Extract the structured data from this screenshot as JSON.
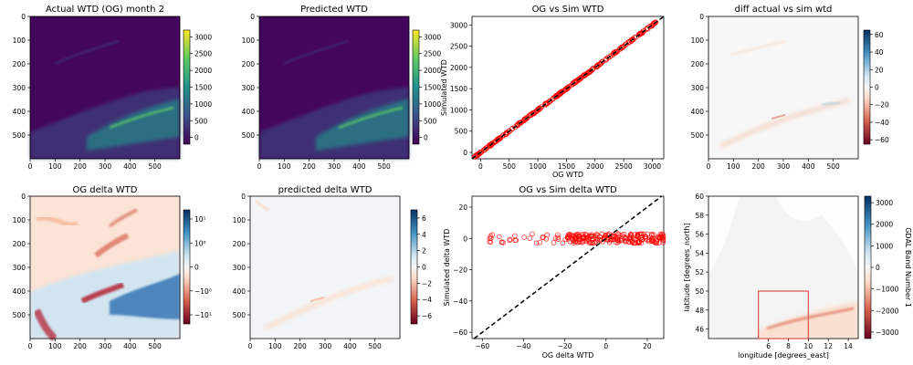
{
  "chart_data": [
    {
      "type": "heatmap",
      "title": "Actual WTD (OG) month 2",
      "x_ticks": [
        "0",
        "100",
        "200",
        "300",
        "400",
        "500"
      ],
      "y_ticks": [
        "0",
        "100",
        "200",
        "300",
        "400",
        "500"
      ],
      "xlim": [
        0,
        600
      ],
      "ylim": [
        0,
        600
      ],
      "colormap": "viridis",
      "colorbar_ticks": [
        "3000",
        "2500",
        "2000",
        "1500",
        "1000",
        "500",
        "0"
      ],
      "colorbar_range": [
        -200,
        3200
      ]
    },
    {
      "type": "heatmap",
      "title": "Predicted WTD",
      "x_ticks": [
        "0",
        "100",
        "200",
        "300",
        "400",
        "500"
      ],
      "y_ticks": [
        "0",
        "100",
        "200",
        "300",
        "400",
        "500"
      ],
      "xlim": [
        0,
        600
      ],
      "ylim": [
        0,
        600
      ],
      "colormap": "viridis",
      "colorbar_ticks": [
        "3000",
        "2500",
        "2000",
        "1500",
        "1000",
        "500",
        "0"
      ],
      "colorbar_range": [
        -200,
        3200
      ]
    },
    {
      "type": "scatter",
      "title": "OG vs Sim WTD",
      "xlabel": "OG WTD",
      "ylabel": "Simulated WTD",
      "xlim": [
        -150,
        3200
      ],
      "ylim": [
        -150,
        3200
      ],
      "x_ticks": [
        "0",
        "500",
        "1000",
        "1500",
        "2000",
        "2500",
        "3000"
      ],
      "y_ticks": [
        "0",
        "500",
        "1000",
        "1500",
        "2000",
        "2500",
        "3000"
      ],
      "x_tick_values": [
        0,
        500,
        1000,
        1500,
        2000,
        2500,
        3000
      ],
      "y_tick_values": [
        0,
        500,
        1000,
        1500,
        2000,
        2500,
        3000
      ],
      "point_color": "#ff0000",
      "reference_line": "y = x",
      "points": {
        "x_min": -100,
        "x_max": 3150,
        "spread": 15
      }
    },
    {
      "type": "heatmap",
      "title": "diff actual vs sim wtd",
      "x_ticks": [
        "0",
        "100",
        "200",
        "300",
        "400",
        "500"
      ],
      "y_ticks": [
        "0",
        "100",
        "200",
        "300",
        "400",
        "500"
      ],
      "xlim": [
        0,
        600
      ],
      "ylim": [
        0,
        600
      ],
      "colormap": "RdBu",
      "colorbar_ticks": [
        "60",
        "40",
        "20",
        "0",
        "−20",
        "−40",
        "−60"
      ],
      "colorbar_range": [
        -65,
        65
      ]
    },
    {
      "type": "heatmap",
      "title": "OG delta WTD",
      "x_ticks": [
        "0",
        "100",
        "200",
        "300",
        "400",
        "500"
      ],
      "y_ticks": [
        "0",
        "100",
        "200",
        "300",
        "400",
        "500"
      ],
      "xlim": [
        0,
        600
      ],
      "ylim": [
        0,
        600
      ],
      "colormap": "RdBu",
      "colorbar_ticks": [
        "10¹",
        "10⁰",
        "0",
        "−10⁰",
        "−10¹"
      ],
      "colorbar_scale": "symlog"
    },
    {
      "type": "heatmap",
      "title": "predicted delta WTD",
      "x_ticks": [
        "0",
        "100",
        "200",
        "300",
        "400",
        "500"
      ],
      "y_ticks": [
        "0",
        "100",
        "200",
        "300",
        "400",
        "500"
      ],
      "xlim": [
        0,
        600
      ],
      "ylim": [
        0,
        600
      ],
      "colormap": "RdBu",
      "colorbar_ticks": [
        "6",
        "4",
        "2",
        "0",
        "−2",
        "−4",
        "−6"
      ],
      "colorbar_range": [
        -7,
        7
      ]
    },
    {
      "type": "scatter",
      "title": "OG vs Sim delta WTD",
      "xlabel": "OG delta WTD",
      "ylabel": "Simulated delta WTD",
      "xlim": [
        -65,
        28
      ],
      "ylim": [
        -64,
        27
      ],
      "x_ticks": [
        "−60",
        "−40",
        "−20",
        "0",
        "20"
      ],
      "y_ticks": [
        "20",
        "0",
        "−20",
        "−40",
        "−60"
      ],
      "x_tick_values": [
        -60,
        -40,
        -20,
        0,
        20
      ],
      "y_tick_values": [
        20,
        0,
        -20,
        -40,
        -60
      ],
      "point_color": "#ff0000",
      "reference_line": "y = x",
      "points": {
        "x_min": -60,
        "x_max": 28,
        "y_center": 0,
        "y_spread": 3
      }
    },
    {
      "type": "heatmap",
      "xlabel": "longitude [degrees_east]",
      "ylabel": "latitude [degrees_north]",
      "xlim": [
        0,
        15
      ],
      "ylim": [
        45,
        60
      ],
      "x_ticks": [
        "6",
        "8",
        "10",
        "12",
        "14"
      ],
      "x_tick_values": [
        6,
        8,
        10,
        12,
        14
      ],
      "y_ticks": [
        "46",
        "48",
        "50",
        "52",
        "54",
        "56",
        "58",
        "60"
      ],
      "y_tick_values": [
        46,
        48,
        50,
        52,
        54,
        56,
        58,
        60
      ],
      "colormap": "RdBu",
      "colorbar_label": "GDAL Band Number 1",
      "colorbar_ticks": [
        "3000",
        "2000",
        "1000",
        "0",
        "−1000",
        "−2000",
        "−3000"
      ],
      "colorbar_range": [
        -3300,
        3300
      ],
      "highlight_box": {
        "lon": [
          5,
          10
        ],
        "lat": [
          45,
          50
        ],
        "color": "#e05050"
      }
    }
  ]
}
